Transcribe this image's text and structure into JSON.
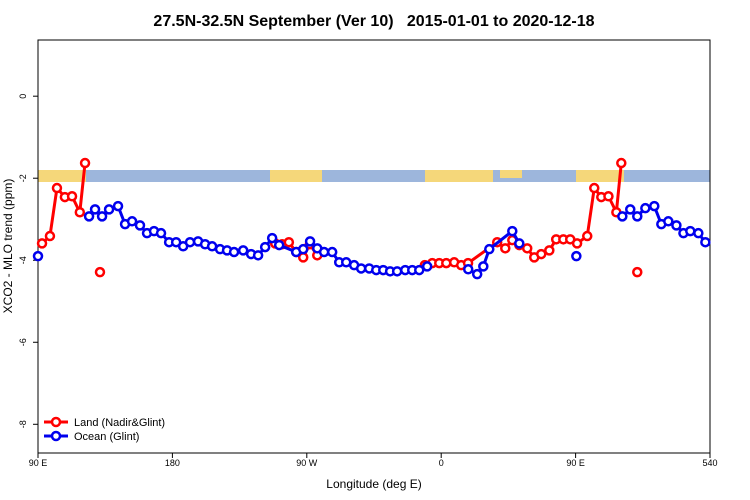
{
  "chart_data": {
    "type": "line",
    "title": "27.5N-32.5N September (Ver 10)   2015-01-01 to 2020-12-18",
    "x_label": "Longitude (deg E)",
    "y_label": "XCO2 - MLO trend (ppm)",
    "xlim": [
      90,
      540
    ],
    "ylim": [
      -8.7,
      1.37
    ],
    "xticks": [
      {
        "value": 90,
        "label": "90 E"
      },
      180,
      {
        "value": 270,
        "label": "90 W"
      },
      {
        "value": 360,
        "label": "0"
      },
      {
        "value": 450,
        "label": "90 E"
      },
      540
    ],
    "yticks": [
      -8,
      -6,
      -4,
      -2,
      0
    ],
    "legend": "bottom-left",
    "series": [
      {
        "name": "Land (Nadir&Glint)",
        "color": "#ff0000",
        "x": [
          92.7,
          98,
          102.7,
          108,
          112.8,
          118,
          121.5,
          null,
          131.5,
          null,
          248.8,
          253.5,
          258,
          262.9,
          267.6,
          272,
          277,
          null,
          349,
          354,
          358.7,
          363.4,
          368.7,
          373.4,
          378,
          397.5,
          402.9,
          407.6,
          412.3,
          417.6,
          422.3,
          427,
          432.4,
          437,
          441.8,
          446.4,
          451,
          457.8,
          462.5,
          467.2,
          472,
          477.3,
          480.6,
          null,
          491.3
        ],
        "values": [
          -3.59,
          -3.41,
          -2.24,
          -2.46,
          -2.44,
          -2.83,
          -1.63,
          null,
          -4.29,
          null,
          -3.59,
          -3.61,
          -3.56,
          -3.8,
          -3.93,
          -3.61,
          -3.88,
          null,
          -4.12,
          -4.07,
          -4.07,
          -4.07,
          -4.05,
          -4.12,
          -4.07,
          -3.56,
          -3.71,
          -3.51,
          -3.63,
          -3.71,
          -3.93,
          -3.85,
          -3.76,
          -3.49,
          -3.49,
          -3.49,
          -3.59,
          -3.41,
          -2.24,
          -2.46,
          -2.44,
          -2.83,
          -1.63,
          null,
          -4.29
        ]
      },
      {
        "name": "Ocean (Glint)",
        "color": "#0000ee",
        "x": [
          90,
          null,
          124.2,
          128.2,
          132.9,
          137.6,
          143.6,
          148.3,
          153,
          158.3,
          163,
          167.7,
          172.4,
          177.8,
          182.5,
          187.2,
          191.8,
          197.2,
          201.9,
          206.6,
          211.9,
          216.6,
          221.3,
          227.4,
          232.7,
          237.4,
          242.1,
          246.8,
          251.5,
          262.9,
          267.6,
          272.2,
          277,
          281.6,
          287,
          291.7,
          296.4,
          301.7,
          306.4,
          311.8,
          316.5,
          321.2,
          325.8,
          330.5,
          335.9,
          340.6,
          345.3,
          350.6,
          null,
          378.1,
          384.1,
          388.2,
          392.2,
          407.6,
          412.3,
          null,
          450.5,
          null,
          481.3,
          486.6,
          491.3,
          496.7,
          502.7,
          507.4,
          512.1,
          517.5,
          522.2,
          526.8,
          532.2,
          536.9
        ],
        "values": [
          -3.9,
          null,
          -2.93,
          -2.76,
          -2.93,
          -2.76,
          -2.68,
          -3.12,
          -3.05,
          -3.15,
          -3.34,
          -3.29,
          -3.34,
          -3.56,
          -3.56,
          -3.66,
          -3.56,
          -3.54,
          -3.61,
          -3.66,
          -3.73,
          -3.76,
          -3.8,
          -3.76,
          -3.85,
          -3.88,
          -3.68,
          -3.46,
          -3.63,
          -3.8,
          -3.73,
          -3.54,
          -3.71,
          -3.8,
          -3.8,
          -4.05,
          -4.05,
          -4.12,
          -4.2,
          -4.2,
          -4.24,
          -4.24,
          -4.27,
          -4.27,
          -4.24,
          -4.24,
          -4.24,
          -4.15,
          null,
          -4.22,
          -4.34,
          -4.15,
          -3.73,
          -3.29,
          -3.59,
          null,
          -3.9,
          null,
          -2.93,
          -2.76,
          -2.93,
          -2.73,
          -2.68,
          -3.12,
          -3.05,
          -3.15,
          -3.34,
          -3.29,
          -3.34,
          -3.56
        ]
      }
    ]
  }
}
